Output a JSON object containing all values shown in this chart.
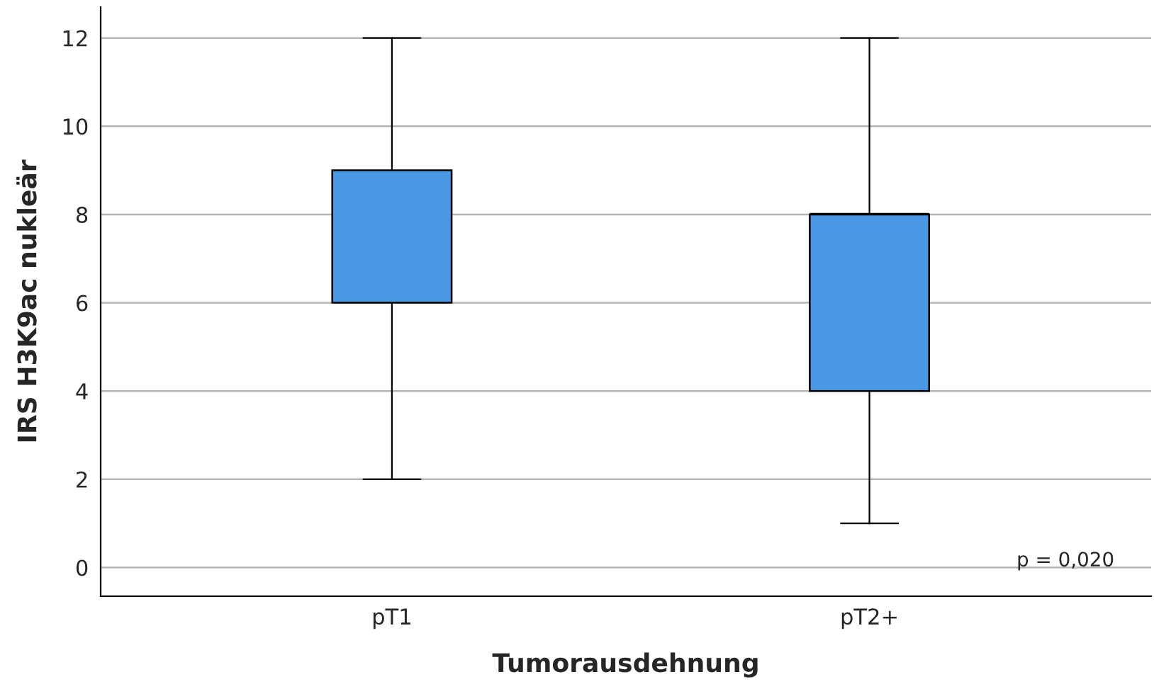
{
  "chart_data": {
    "type": "box",
    "xlabel": "Tumorausdehnung",
    "ylabel": "IRS H3K9ac nukleär",
    "categories": [
      "pT1",
      "pT2+"
    ],
    "boxes": [
      {
        "low": 2,
        "q1": 6,
        "median": 8,
        "q3": 9,
        "high": 12
      },
      {
        "low": 1,
        "q1": 4,
        "median": 8,
        "q3": 8,
        "high": 12
      }
    ],
    "color": "#4a97e4",
    "ylim": [
      -0.65,
      12.7
    ],
    "yticks": [
      0,
      2,
      4,
      6,
      8,
      10,
      12
    ],
    "grid": "y",
    "annotations": [
      "p = 0,020"
    ]
  }
}
